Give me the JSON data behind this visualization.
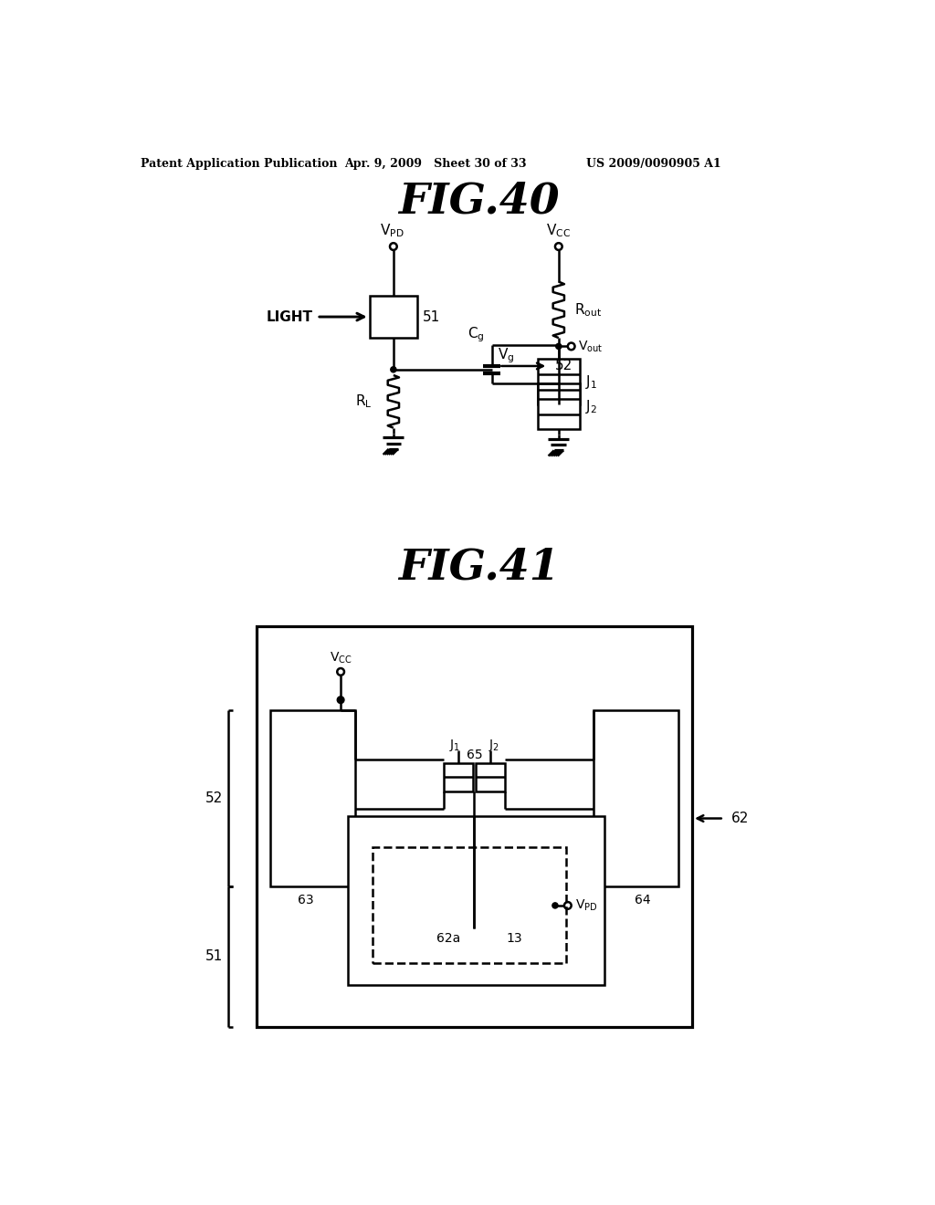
{
  "bg_color": "#ffffff",
  "line_color": "#000000",
  "line_width": 1.8,
  "header_left": "Patent Application Publication",
  "header_mid": "Apr. 9, 2009   Sheet 30 of 33",
  "header_right": "US 2009/0090905 A1"
}
